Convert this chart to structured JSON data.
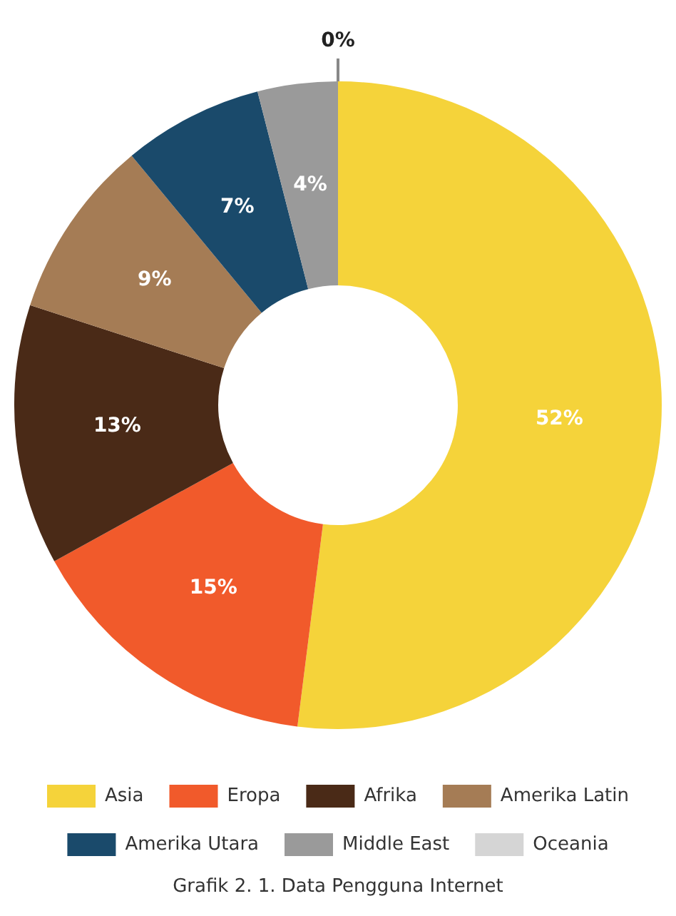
{
  "chart_data": {
    "type": "donut",
    "categories": [
      "Asia",
      "Eropa",
      "Afrika",
      "Amerika Latin",
      "Amerika Utara",
      "Middle East",
      "Oceania"
    ],
    "values": [
      52,
      15,
      13,
      9,
      7,
      4,
      0
    ],
    "colors": [
      "#f5d33a",
      "#f15a2b",
      "#4a2a17",
      "#a57c55",
      "#1a4a6b",
      "#9a9a9a",
      "#d5d5d5"
    ],
    "value_labels": [
      "52%",
      "15%",
      "13%",
      "9%",
      "7%",
      "4%",
      "0%"
    ],
    "legend": "bottom",
    "annotations": [
      "Grafik 2. 1. Data Pengguna Internet"
    ]
  }
}
